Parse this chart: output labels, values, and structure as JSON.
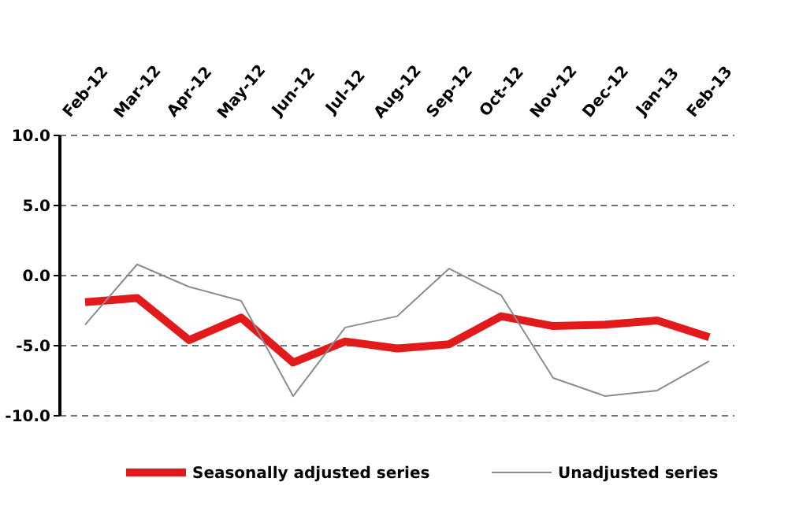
{
  "chart_data": {
    "type": "line",
    "categories": [
      "Feb-12",
      "Mar-12",
      "Apr-12",
      "May-12",
      "Jun-12",
      "Jul-12",
      "Aug-12",
      "Sep-12",
      "Oct-12",
      "Nov-12",
      "Dec-12",
      "Jan-13",
      "Feb-13"
    ],
    "series": [
      {
        "name": "Seasonally adjusted series",
        "color": "#e31a1c",
        "values": [
          -1.9,
          -1.6,
          -4.6,
          -3.0,
          -6.2,
          -4.7,
          -5.2,
          -4.9,
          -2.9,
          -3.6,
          -3.5,
          -3.2,
          -4.4
        ]
      },
      {
        "name": "Unadjusted series",
        "color": "#8c8c8c",
        "values": [
          -3.5,
          0.8,
          -0.8,
          -1.8,
          -8.6,
          -3.7,
          -2.9,
          0.5,
          -1.4,
          -7.3,
          -8.6,
          -8.2,
          -6.1
        ]
      }
    ],
    "ylim": [
      -10,
      10
    ],
    "yticks": [
      {
        "value": -10,
        "label": "-10.0"
      },
      {
        "value": -5,
        "label": "-5.0"
      },
      {
        "value": 0,
        "label": "0.0"
      },
      {
        "value": 5,
        "label": "5.0"
      },
      {
        "value": 10,
        "label": "10.0"
      }
    ],
    "grid": "y",
    "legend": "bottom",
    "marker": "none",
    "line_style": "solid"
  }
}
